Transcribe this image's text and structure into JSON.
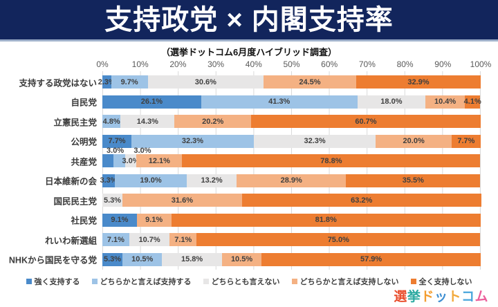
{
  "header": {
    "title": "支持政党 × 内閣支持率"
  },
  "subtitle": "（選挙ドットコム6月度ハイブリッド調査）",
  "chart_data": {
    "type": "bar",
    "variant": "horizontal-stacked-100pct",
    "title": "支持政党 × 内閣支持率",
    "subtitle": "（選挙ドットコム6月度ハイブリッド調査）",
    "xlim": [
      0,
      100
    ],
    "grid": true,
    "legend_position": "bottom",
    "x_ticks": [
      "0%",
      "10%",
      "20%",
      "30%",
      "40%",
      "50%",
      "60%",
      "70%",
      "80%",
      "90%",
      "100%"
    ],
    "series_names": [
      "強く支持する",
      "どちらかと言えば支持する",
      "どちらとも言えない",
      "どちらかと言えば支持しない",
      "全く支持しない"
    ],
    "series_colors": [
      "#4a8aca",
      "#9dc3e6",
      "#e7e6e6",
      "#f4b183",
      "#ed7d31"
    ],
    "categories": [
      "支持する政党はない",
      "自民党",
      "立憲民主党",
      "公明党",
      "共産党",
      "日本維新の会",
      "国民民主党",
      "社民党",
      "れいわ新選組",
      "NHKから国民を守る党"
    ],
    "rows": [
      {
        "category": "支持する政党はない",
        "values": [
          2.3,
          9.7,
          30.6,
          24.5,
          32.9
        ]
      },
      {
        "category": "自民党",
        "values": [
          26.1,
          41.3,
          18.0,
          10.4,
          4.1
        ]
      },
      {
        "category": "立憲民主党",
        "values": [
          0,
          4.8,
          14.3,
          20.2,
          60.7
        ]
      },
      {
        "category": "公明党",
        "values": [
          7.7,
          32.3,
          32.3,
          20.0,
          7.7
        ]
      },
      {
        "category": "共産党",
        "values": [
          3.0,
          3.0,
          3.0,
          12.1,
          78.8
        ],
        "hide_inline": [
          0,
          1
        ],
        "above_labels": [
          {
            "text": "3.0%",
            "x_pct": 3.4
          },
          {
            "text": "3.0%",
            "x_pct": 10.6
          }
        ]
      },
      {
        "category": "日本維新の会",
        "values": [
          3.3,
          19.0,
          13.2,
          28.9,
          35.5
        ]
      },
      {
        "category": "国民民主党",
        "values": [
          0,
          0,
          5.3,
          31.6,
          63.2
        ]
      },
      {
        "category": "社民党",
        "values": [
          9.1,
          0,
          0,
          9.1,
          81.8
        ]
      },
      {
        "category": "れいわ新選組",
        "values": [
          0,
          7.1,
          10.7,
          7.1,
          75.0
        ]
      },
      {
        "category": "NHKから国民を守る党",
        "values": [
          5.3,
          10.5,
          15.8,
          10.5,
          57.9
        ]
      }
    ]
  },
  "footer": {
    "logo_chars": [
      {
        "ch": "選",
        "color": "#e94f2e"
      },
      {
        "ch": "挙",
        "color": "#2ba9a0"
      },
      {
        "ch": "ド",
        "color": "#f39d2f"
      },
      {
        "ch": "ッ",
        "color": "#3f8fd2"
      },
      {
        "ch": "ト",
        "color": "#f2a93b"
      },
      {
        "ch": "コ",
        "color": "#4aa6dc"
      },
      {
        "ch": "ム",
        "color": "#ec5f9b"
      }
    ]
  }
}
